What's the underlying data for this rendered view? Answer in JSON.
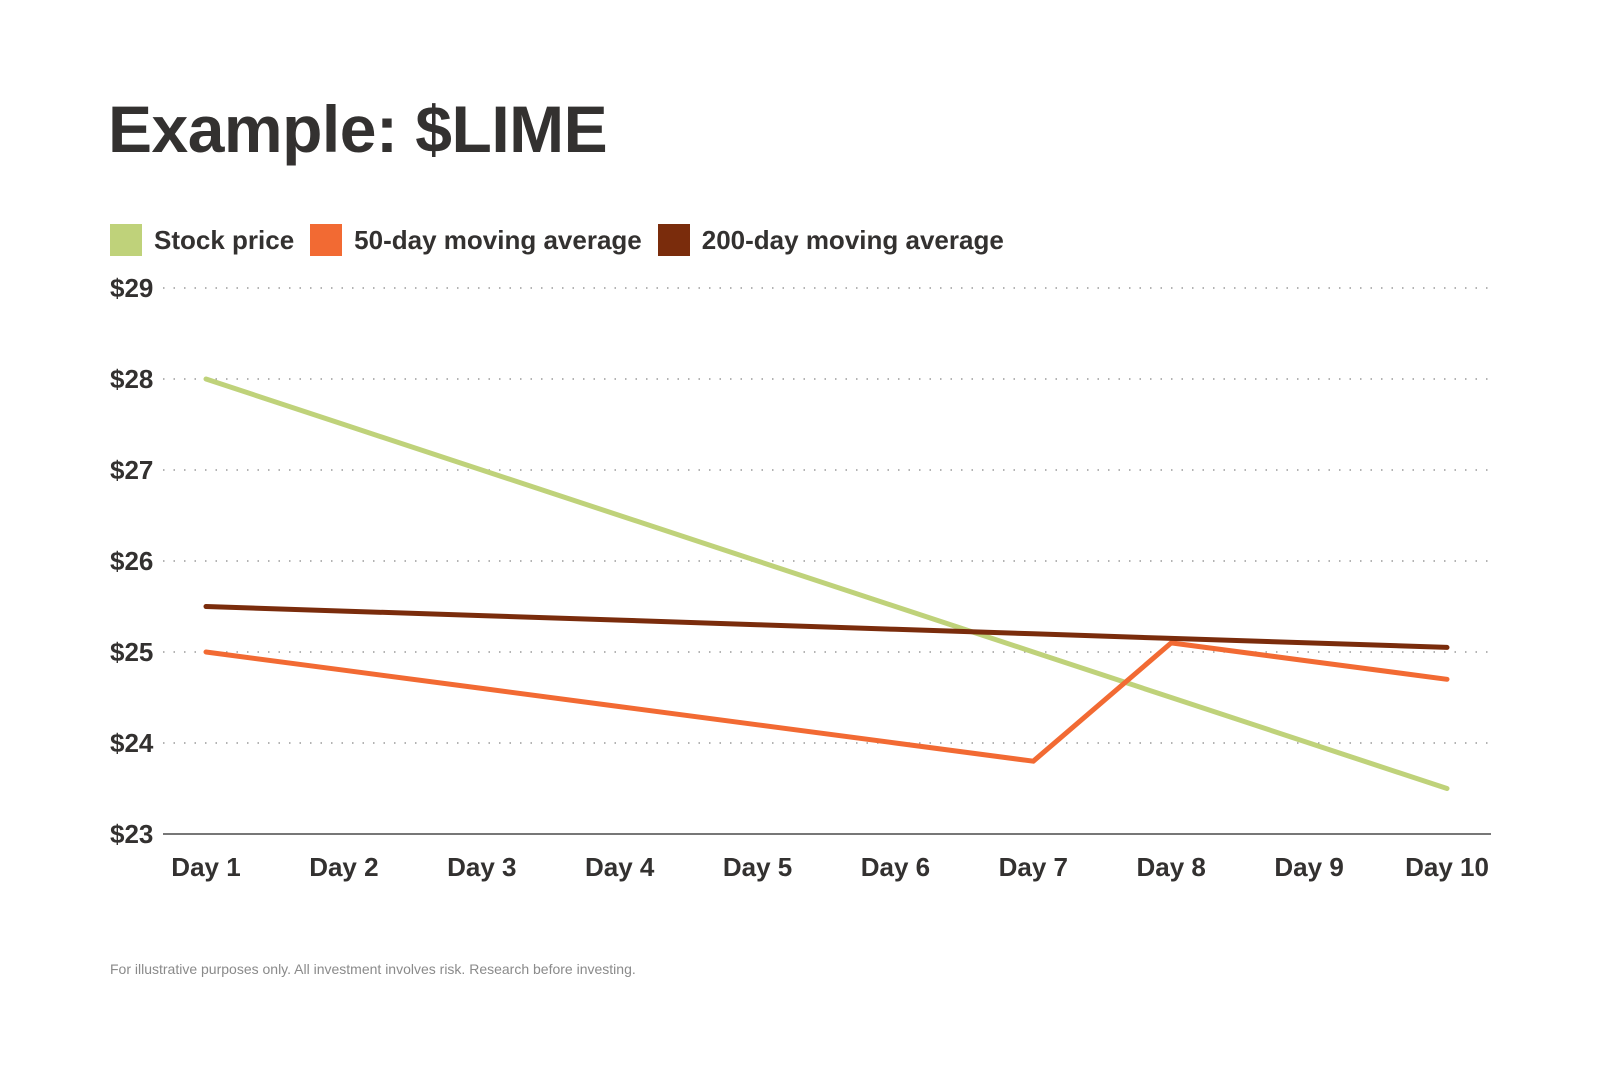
{
  "chart_data": {
    "type": "line",
    "title": "Example: $LIME",
    "xlabel": "",
    "ylabel": "",
    "categories": [
      "Day 1",
      "Day 2",
      "Day 3",
      "Day 4",
      "Day 5",
      "Day 6",
      "Day 7",
      "Day 8",
      "Day 9",
      "Day 10"
    ],
    "ylim": [
      23,
      29
    ],
    "yticks": [
      23,
      24,
      25,
      26,
      27,
      28,
      29
    ],
    "ytick_labels": [
      "$23",
      "$24",
      "$25",
      "$26",
      "$27",
      "$28",
      "$29"
    ],
    "grid": true,
    "legend_position": "top-left",
    "series": [
      {
        "name": "Stock price",
        "color": "#bfd27a",
        "values": [
          28.0,
          27.5,
          27.0,
          26.5,
          26.0,
          25.5,
          25.0,
          24.5,
          24.0,
          23.5
        ]
      },
      {
        "name": "50-day moving average",
        "color": "#f26a33",
        "values": [
          25.0,
          24.8,
          24.6,
          24.4,
          24.2,
          24.0,
          23.8,
          25.1,
          24.9,
          24.7
        ]
      },
      {
        "name": "200-day moving average",
        "color": "#7a2c0c",
        "values": [
          25.5,
          25.45,
          25.4,
          25.35,
          25.3,
          25.25,
          25.2,
          25.15,
          25.1,
          25.05
        ]
      }
    ],
    "footnote": "For illustrative purposes only. All investment involves risk. Research before investing."
  }
}
